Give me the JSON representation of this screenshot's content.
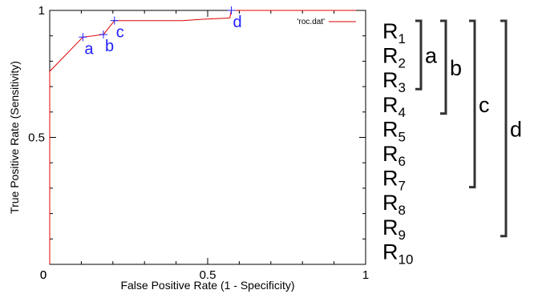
{
  "chart_data": {
    "type": "line",
    "xlabel": "False Positive Rate (1 - Specificity)",
    "ylabel": "True Positive Rate (Sensitivity)",
    "xlim": [
      0,
      1
    ],
    "ylim": [
      0,
      1
    ],
    "x_ticks": [
      0,
      0.5,
      1
    ],
    "x_tick_labels": [
      "0",
      "0.5",
      "1"
    ],
    "y_ticks": [
      0,
      0.5,
      1
    ],
    "y_tick_labels": [
      "0",
      "0.5",
      "1"
    ],
    "grid": false,
    "legend_position": "top-right",
    "series": [
      {
        "name": "'roc.dat'",
        "color": "#e00000",
        "x": [
          0,
          0.0,
          0.105,
          0.17,
          0.205,
          0.42,
          0.48,
          0.57,
          0.575,
          0.97
        ],
        "y": [
          0,
          0.76,
          0.895,
          0.905,
          0.96,
          0.96,
          0.965,
          0.97,
          1.0,
          1.0
        ]
      }
    ],
    "points": [
      {
        "label": "a",
        "x": 0.105,
        "y": 0.895
      },
      {
        "label": "b",
        "x": 0.17,
        "y": 0.905
      },
      {
        "label": "c",
        "x": 0.205,
        "y": 0.96
      },
      {
        "label": "d",
        "x": 0.575,
        "y": 1.0
      }
    ],
    "point_color": "#1f1fff"
  },
  "ranking": {
    "items": [
      {
        "letter": "R",
        "sub": "1"
      },
      {
        "letter": "R",
        "sub": "2"
      },
      {
        "letter": "R",
        "sub": "3"
      },
      {
        "letter": "R",
        "sub": "4"
      },
      {
        "letter": "R",
        "sub": "5"
      },
      {
        "letter": "R",
        "sub": "6"
      },
      {
        "letter": "R",
        "sub": "7"
      },
      {
        "letter": "R",
        "sub": "8"
      },
      {
        "letter": "R",
        "sub": "9"
      },
      {
        "letter": "R",
        "sub": "10"
      }
    ],
    "groups": [
      {
        "label": "a",
        "first_rank": 1,
        "last_rank": 3
      },
      {
        "label": "b",
        "first_rank": 1,
        "last_rank": 4
      },
      {
        "label": "c",
        "first_rank": 1,
        "last_rank": 7
      },
      {
        "label": "d",
        "first_rank": 1,
        "last_rank": 9
      }
    ]
  }
}
